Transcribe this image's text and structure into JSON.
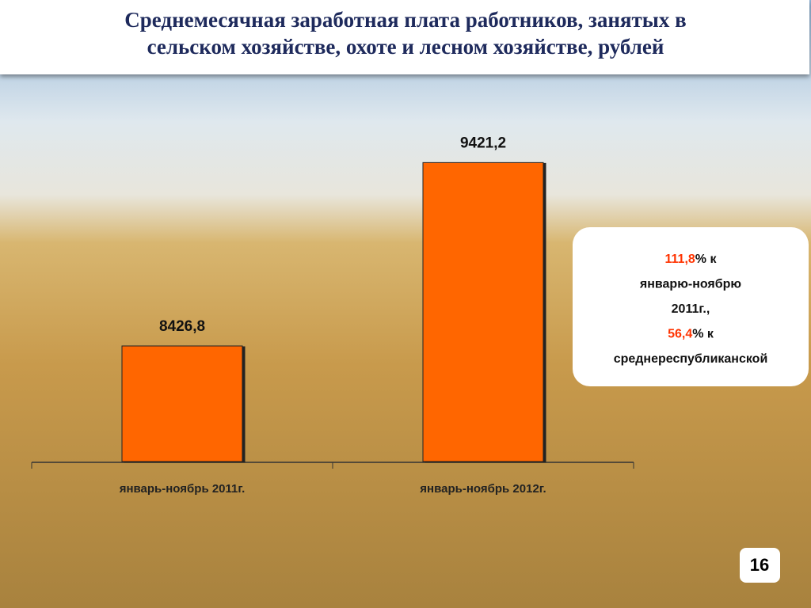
{
  "title": "Среднемесячная заработная плата работников, занятых в сельском хозяйстве, охоте и лесном хозяйстве, рублей",
  "title_lines": [
    "Среднемесячная заработная плата работников, занятых в",
    "сельском хозяйстве, охоте и лесном хозяйстве, рублей"
  ],
  "chart_data": {
    "type": "bar",
    "categories": [
      "январь-ноябрь 2011г.",
      "январь-ноябрь 2012г."
    ],
    "values": [
      8426.8,
      9421.2
    ],
    "value_labels": [
      "8426,8",
      "9421,2"
    ],
    "color": "#ff6600",
    "ylim": [
      7800,
      9500
    ]
  },
  "note": {
    "lines": [
      [
        "111,8",
        "% к"
      ],
      [
        "январю-ноябрю"
      ],
      [
        "2011г.,"
      ],
      [
        "56,4",
        "% к"
      ],
      [
        "среднереспубликанской"
      ]
    ]
  },
  "page_number": "16"
}
